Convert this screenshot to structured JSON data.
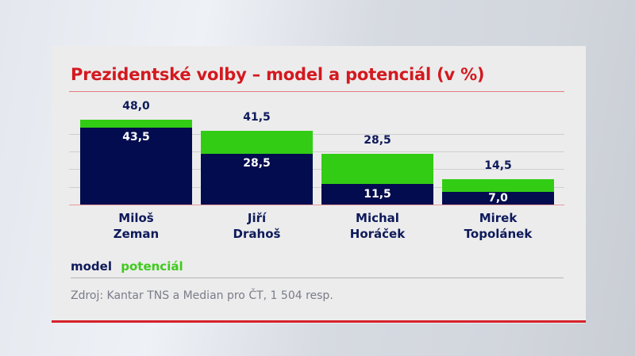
{
  "title": "Prezidentské volby – model a potenciál (v %)",
  "legend": {
    "model": "model",
    "potential": "potenciál"
  },
  "source": "Zdroj: Kantar TNS a Median pro ČT, 1 504 resp.",
  "colors": {
    "title": "#d3191f",
    "model": "#030c4e",
    "potential": "#33cc14",
    "accent_rule": "#d6212b",
    "label": "#0e1a5a",
    "source": "#7a7c8a"
  },
  "candidates": [
    {
      "first": "Miloš",
      "last": "Zeman",
      "model": "43,5",
      "potential": "48,0"
    },
    {
      "first": "Jiří",
      "last": "Drahoš",
      "model": "28,5",
      "potential": "41,5"
    },
    {
      "first": "Michal",
      "last": "Horáček",
      "model": "11,5",
      "potential": "28,5"
    },
    {
      "first": "Mirek",
      "last": "Topolánek",
      "model": "7,0",
      "potential": "14,5"
    }
  ],
  "chart_data": {
    "type": "bar",
    "stacked": "overlay",
    "title": "Prezidentské volby – model a potenciál (v %)",
    "categories": [
      "Miloš Zeman",
      "Jiří Drahoš",
      "Michal Horáček",
      "Mirek Topolánek"
    ],
    "series": [
      {
        "name": "model",
        "color": "#030c4e",
        "values": [
          43.5,
          28.5,
          11.5,
          7.0
        ]
      },
      {
        "name": "potenciál",
        "color": "#33cc14",
        "values": [
          48.0,
          41.5,
          28.5,
          14.5
        ]
      }
    ],
    "xlabel": "",
    "ylabel": "",
    "ylim": [
      0,
      50
    ],
    "grid": true,
    "gridlines": [
      10,
      20,
      30,
      40
    ],
    "legend_position": "bottom-left",
    "source": "Zdroj: Kantar TNS a Median pro ČT, 1 504 resp."
  }
}
